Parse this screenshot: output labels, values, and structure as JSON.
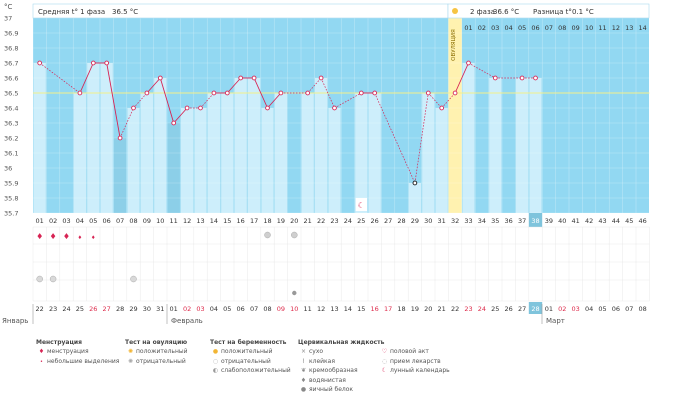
{
  "y_unit": "°C",
  "header": {
    "phase1_label": "Средняя t° 1 фаза",
    "phase1_value": "36.5 °C",
    "phase2_label": "2 фаза",
    "phase2_value": "36.6 °C",
    "diff_label": "Разница t°",
    "diff_value": "0.1 °C"
  },
  "ovulation_label": "ОВУЛЯЦИЯ",
  "month_labels": [
    "Январь",
    "Февраль",
    "Март"
  ],
  "colors": {
    "sky": "#92d8f2",
    "bar": "#cdeefb",
    "bar_dark": "#8ccfe8",
    "line": "#d72454",
    "ovulation": "#fff2b0",
    "weekend": "#dd2a4a",
    "today": "#7fc4dc"
  },
  "chart_data": {
    "type": "line",
    "y_ticks": [
      "37",
      "36.9",
      "36.8",
      "36.7",
      "36.6",
      "36.5",
      "36.4",
      "36.3",
      "36.2",
      "36.1",
      "36",
      "35.9",
      "35.8",
      "35.7"
    ],
    "ylim": [
      35.7,
      37
    ],
    "cycle_days": [
      "01",
      "02",
      "03",
      "04",
      "05",
      "06",
      "07",
      "08",
      "09",
      "10",
      "11",
      "12",
      "13",
      "14",
      "15",
      "16",
      "17",
      "18",
      "19",
      "20",
      "21",
      "22",
      "23",
      "24",
      "25",
      "26",
      "27",
      "28",
      "29",
      "30",
      "31",
      "32",
      "33",
      "34",
      "35",
      "36",
      "37",
      "38",
      "39",
      "40",
      "41",
      "42",
      "43",
      "44",
      "45",
      "46"
    ],
    "phase2_days": [
      "01",
      "02",
      "03",
      "04",
      "05",
      "06",
      "07",
      "08",
      "09",
      "10",
      "11",
      "12",
      "13",
      "14"
    ],
    "dates": [
      "22",
      "23",
      "24",
      "25",
      "26",
      "27",
      "28",
      "29",
      "30",
      "31",
      "01",
      "02",
      "03",
      "04",
      "05",
      "06",
      "07",
      "08",
      "09",
      "10",
      "11",
      "12",
      "13",
      "14",
      "15",
      "16",
      "17",
      "18",
      "19",
      "20",
      "21",
      "22",
      "23",
      "24",
      "25",
      "26",
      "27",
      "28",
      "01",
      "02",
      "03",
      "04",
      "05",
      "06",
      "07",
      "08"
    ],
    "weekend_date_idx": [
      4,
      5,
      11,
      12,
      18,
      19,
      25,
      26,
      32,
      33,
      39,
      40
    ],
    "temperatures": [
      36.7,
      null,
      null,
      36.5,
      36.7,
      36.7,
      36.2,
      36.4,
      36.5,
      36.6,
      36.3,
      36.4,
      36.4,
      36.5,
      36.5,
      36.6,
      36.6,
      36.4,
      36.5,
      null,
      36.5,
      36.6,
      36.4,
      null,
      36.5,
      36.5,
      null,
      null,
      35.9,
      36.5,
      36.4,
      36.5,
      36.7,
      null,
      36.6,
      null,
      36.6,
      36.6,
      null,
      null,
      null,
      null,
      null,
      null,
      null,
      null
    ],
    "excluded_idx": [
      0,
      7,
      12,
      21,
      29,
      30,
      35,
      36
    ],
    "coverline": 36.5,
    "ovulation_idx": 31,
    "today_idx": 37,
    "menstruation": {
      "heavy": [
        0,
        1,
        2
      ],
      "light": [
        3,
        4
      ]
    },
    "ovulation_test_negative": [
      17,
      19
    ],
    "pregnancy_test_weak": [
      0,
      1,
      7
    ],
    "cervical_egg_white": [
      19
    ],
    "lunar_day": [
      24
    ]
  },
  "legend": {
    "menstruation": {
      "title": "Менструация",
      "items": [
        "менструация",
        "небольшие выделения"
      ]
    },
    "ovulation_test": {
      "title": "Тест на овуляцию",
      "items": [
        "положительный",
        "отрицательный"
      ]
    },
    "pregnancy_test": {
      "title": "Тест на беременность",
      "items": [
        "положительный",
        "отрицательный",
        "слабоположительный"
      ]
    },
    "cervical": {
      "title": "Цервикальная жидкость",
      "items": [
        "сухо",
        "клейкая",
        "кремообразная",
        "водянистая",
        "яичный белок"
      ]
    },
    "other": {
      "items": [
        "половой акт",
        "прием лекарств",
        "лунный календарь"
      ]
    }
  }
}
